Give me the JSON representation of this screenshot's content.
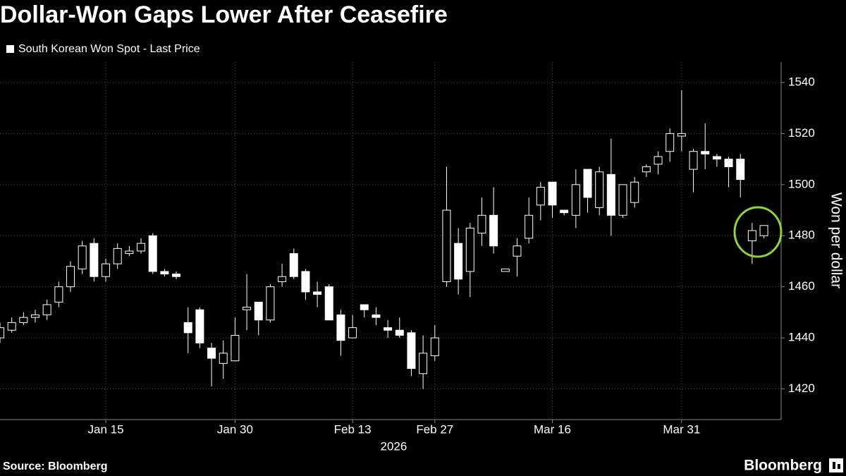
{
  "chart_data": {
    "type": "candlestick",
    "title": "Dollar-Won Gaps Lower After Ceasefire",
    "y_label": "Won per dollar",
    "year_label": "2026",
    "source": "Source: Bloomberg",
    "brand": "Bloomberg",
    "grid": true,
    "ylim": [
      1408,
      1548
    ],
    "yticks": [
      1420,
      1440,
      1460,
      1480,
      1500,
      1520,
      1540
    ],
    "categories": [
      null,
      null,
      null,
      null,
      null,
      null,
      null,
      null,
      null,
      "Jan 15",
      null,
      null,
      null,
      null,
      null,
      null,
      null,
      null,
      null,
      null,
      "Jan 30",
      null,
      null,
      null,
      null,
      null,
      null,
      null,
      null,
      null,
      "Feb 13",
      null,
      null,
      null,
      null,
      null,
      null,
      "Feb 27",
      null,
      null,
      null,
      null,
      null,
      null,
      null,
      null,
      null,
      "Mar 16",
      null,
      null,
      null,
      null,
      null,
      null,
      null,
      null,
      null,
      null,
      "Mar 31",
      null,
      null,
      null,
      null,
      null,
      null,
      null
    ],
    "series": [
      {
        "name": "South Korean Won Spot - Last Price",
        "color": "#ffffff",
        "open": [
          1440,
          1443,
          1446,
          1448,
          1449,
          1454,
          1460,
          1467,
          1477,
          1464,
          1469,
          1473,
          1474,
          1480,
          1466,
          1465,
          1446,
          1451,
          1436,
          1430,
          1431,
          1451,
          1454,
          1447,
          1462,
          1473,
          1466,
          1458,
          1460,
          1449,
          1440,
          1453,
          1449,
          1444,
          1443,
          1442,
          1426,
          1433,
          1462,
          1477,
          1466,
          1481,
          1488,
          1466,
          1472,
          1479,
          1492,
          1501,
          1490,
          1488,
          1506,
          1491,
          1504,
          1488,
          1493,
          1505,
          1508,
          1513,
          1519,
          1506,
          1513,
          1511,
          1510,
          1510,
          1478,
          1480
        ],
        "high": [
          1446,
          1448,
          1450,
          1451,
          1455,
          1462,
          1470,
          1478,
          1479,
          1471,
          1477,
          1476,
          1479,
          1481,
          1467,
          1466,
          1452,
          1452,
          1438,
          1439,
          1448,
          1465,
          1454,
          1461,
          1469,
          1475,
          1467,
          1462,
          1461,
          1451,
          1449,
          1453,
          1452,
          1447,
          1448,
          1443,
          1441,
          1445,
          1507,
          1483,
          1485,
          1495,
          1499,
          1467,
          1479,
          1495,
          1501,
          1501,
          1490,
          1506,
          1506,
          1507,
          1518,
          1500,
          1503,
          1508,
          1513,
          1522,
          1537,
          1514,
          1524,
          1512,
          1511,
          1512,
          1485,
          1484
        ],
        "low": [
          1438,
          1442,
          1445,
          1446,
          1447,
          1452,
          1458,
          1465,
          1462,
          1462,
          1467,
          1472,
          1473,
          1465,
          1464,
          1463,
          1434,
          1436,
          1421,
          1424,
          1431,
          1443,
          1441,
          1446,
          1460,
          1463,
          1455,
          1452,
          1447,
          1433,
          1440,
          1448,
          1445,
          1440,
          1440,
          1425,
          1420,
          1431,
          1460,
          1457,
          1456,
          1476,
          1473,
          1466,
          1464,
          1477,
          1486,
          1487,
          1488,
          1483,
          1489,
          1488,
          1480,
          1487,
          1491,
          1503,
          1504,
          1509,
          1513,
          1497,
          1506,
          1507,
          1499,
          1495,
          1469,
          1479
        ],
        "close": [
          1444,
          1446,
          1448,
          1449,
          1453,
          1460,
          1468,
          1476,
          1464,
          1469,
          1475,
          1474,
          1477,
          1466,
          1465,
          1464,
          1442,
          1438,
          1432,
          1434,
          1441,
          1452,
          1447,
          1460,
          1464,
          1464,
          1458,
          1457,
          1447,
          1439,
          1444,
          1451,
          1448,
          1443,
          1441,
          1428,
          1434,
          1440,
          1490,
          1463,
          1483,
          1488,
          1476,
          1467,
          1476,
          1488,
          1499,
          1492,
          1489,
          1500,
          1495,
          1505,
          1488,
          1500,
          1501,
          1507,
          1511,
          1520,
          1520,
          1513,
          1512,
          1510,
          1507,
          1502,
          1482,
          1484
        ]
      }
    ]
  }
}
